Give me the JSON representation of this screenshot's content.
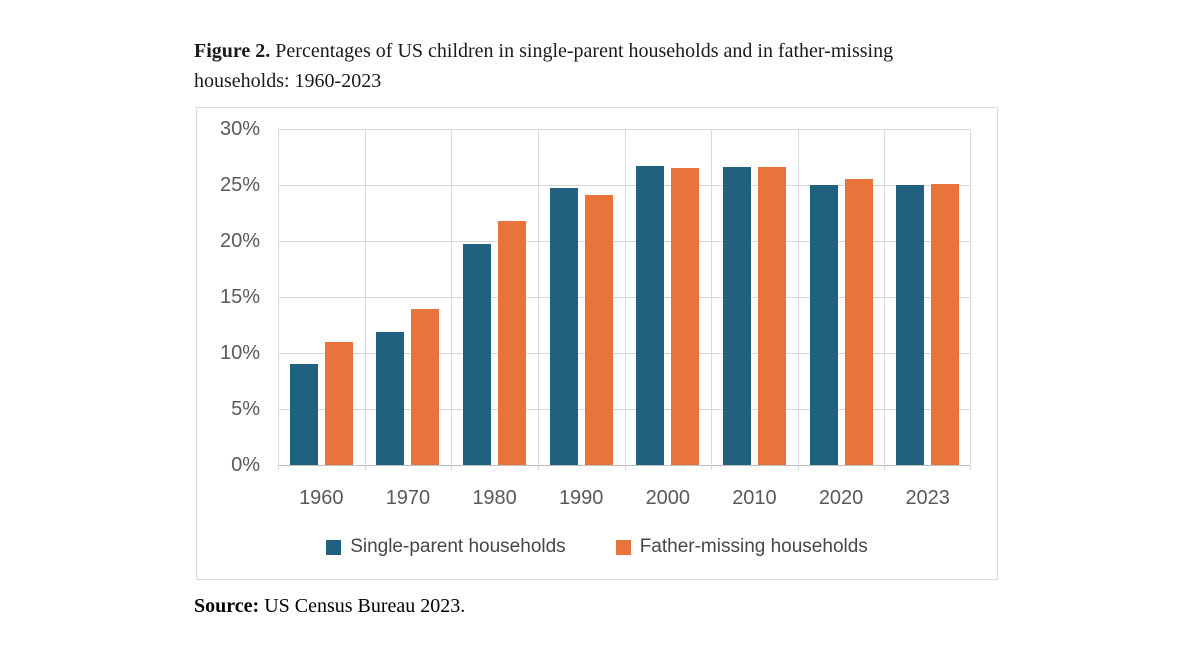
{
  "figure": {
    "label": "Figure 2.",
    "caption": " Percentages of US children in single-parent households and in father-missing households: 1960-2023"
  },
  "source": {
    "label": "Source:",
    "text": " US Census Bureau 2023."
  },
  "colors": {
    "series_blue": "#20617F",
    "series_orange": "#E8743C",
    "gridline": "#D9D9D9",
    "axis_line": "#BFBFBF",
    "tick_text": "#595959",
    "legend_text": "#474747",
    "frame_border": "#D9D9D9"
  },
  "chart_data": {
    "type": "bar",
    "title": "Figure 2. Percentages of US children in single-parent households and in father-missing households: 1960-2023",
    "categories": [
      "1960",
      "1970",
      "1980",
      "1990",
      "2000",
      "2010",
      "2020",
      "2023"
    ],
    "series": [
      {
        "name": "Single-parent households",
        "color": "#20617F",
        "values": [
          9.0,
          11.9,
          19.7,
          24.7,
          26.7,
          26.6,
          25.0,
          25.0
        ]
      },
      {
        "name": "Father-missing households",
        "color": "#E8743C",
        "values": [
          11.0,
          13.9,
          21.8,
          24.1,
          26.5,
          26.6,
          25.5,
          25.1
        ]
      }
    ],
    "xlabel": "",
    "ylabel": "",
    "ylim": [
      0,
      30
    ],
    "ytick_step": 5,
    "ytick_labels": [
      "0%",
      "5%",
      "10%",
      "15%",
      "20%",
      "25%",
      "30%"
    ],
    "grid": true,
    "legend_position": "bottom"
  }
}
